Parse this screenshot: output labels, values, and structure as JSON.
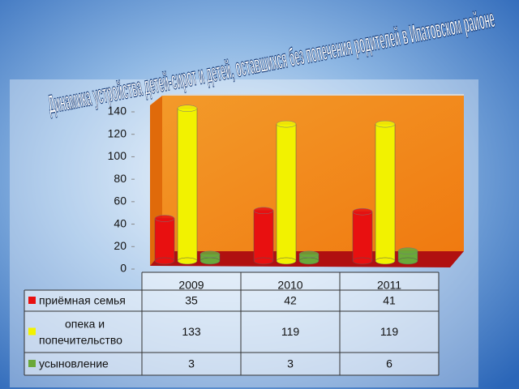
{
  "chart_data": {
    "type": "bar",
    "title": "Динамика устройства детей-сирот и детей, оставшихся без попечения родителей в Ипатовском районе",
    "categories": [
      "2009",
      "2010",
      "2011"
    ],
    "series": [
      {
        "name": "приёмная семья",
        "color": "#e81010",
        "values": [
          35,
          42,
          41
        ]
      },
      {
        "name": "опека и попечительство",
        "color": "#f2f200",
        "values": [
          133,
          119,
          119
        ]
      },
      {
        "name": "усыновление",
        "color": "#6aa83a",
        "values": [
          3,
          3,
          6
        ]
      }
    ],
    "ylim": [
      0,
      140
    ],
    "yticks": [
      0,
      20,
      40,
      60,
      80,
      100,
      120,
      140
    ]
  }
}
